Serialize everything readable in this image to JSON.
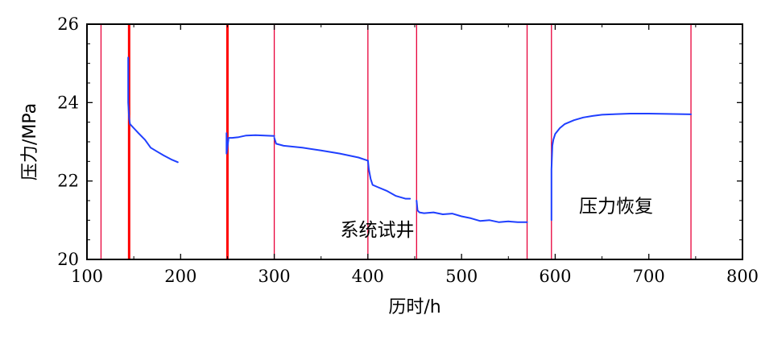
{
  "chart_data": {
    "type": "line",
    "title": "",
    "xlabel": "历时/h",
    "ylabel": "压力/MPa",
    "xlim": [
      100,
      800
    ],
    "ylim": [
      20,
      26
    ],
    "x_ticks": [
      100,
      200,
      300,
      400,
      500,
      600,
      700,
      800
    ],
    "y_ticks": [
      20,
      22,
      24,
      26
    ],
    "grid": false,
    "legend": "none",
    "colors": {
      "series": "#1f3fff",
      "markers": "#e8003a",
      "thick_markers": "#ff0000",
      "axis": "#000000"
    },
    "vertical_markers": [
      {
        "x": 115,
        "emphasis": "thin"
      },
      {
        "x": 145,
        "emphasis": "thick"
      },
      {
        "x": 250,
        "emphasis": "thick"
      },
      {
        "x": 300,
        "emphasis": "thin"
      },
      {
        "x": 400,
        "emphasis": "thin"
      },
      {
        "x": 452,
        "emphasis": "thin"
      },
      {
        "x": 570,
        "emphasis": "thin"
      },
      {
        "x": 596,
        "emphasis": "thin"
      },
      {
        "x": 745,
        "emphasis": "thin"
      }
    ],
    "annotations": [
      {
        "text": "系统试井",
        "x": 410,
        "y": 20.6
      },
      {
        "text": "压力恢复",
        "x": 665,
        "y": 21.2
      }
    ],
    "series": [
      {
        "segments": [
          {
            "x": [
              144,
              144,
              145,
              146,
              150,
              155,
              162,
              168,
              175,
              182,
              190,
              197
            ],
            "y": [
              25.15,
              24.0,
              23.6,
              23.45,
              23.35,
              23.22,
              23.05,
              22.85,
              22.75,
              22.65,
              22.55,
              22.48
            ]
          },
          {
            "x": [
              249,
              249,
              251,
              251,
              255,
              262,
              270,
              280,
              290,
              300
            ],
            "y": [
              23.22,
              22.7,
              23.05,
              23.1,
              23.1,
              23.12,
              23.16,
              23.17,
              23.16,
              23.15
            ]
          },
          {
            "x": [
              300,
              302,
              310,
              330,
              350,
              370,
              390,
              400
            ],
            "y": [
              23.1,
              22.95,
              22.9,
              22.85,
              22.78,
              22.7,
              22.6,
              22.52
            ]
          },
          {
            "x": [
              400,
              401,
              403,
              405,
              410,
              420,
              430,
              440,
              445
            ],
            "y": [
              22.52,
              22.3,
              22.05,
              21.9,
              21.85,
              21.75,
              21.62,
              21.55,
              21.55
            ]
          },
          {
            "x": [
              452,
              453,
              455,
              460,
              470,
              480,
              490,
              500,
              510,
              520,
              530,
              540,
              550,
              560,
              570
            ],
            "y": [
              21.5,
              21.25,
              21.2,
              21.18,
              21.2,
              21.15,
              21.17,
              21.1,
              21.05,
              20.98,
              21.0,
              20.95,
              20.97,
              20.95,
              20.95
            ]
          },
          {
            "x": [
              596,
              596,
              597,
              598,
              600,
              605,
              610,
              620,
              630,
              640,
              650,
              660,
              680,
              700,
              720,
              745
            ],
            "y": [
              21.0,
              22.3,
              22.9,
              23.05,
              23.2,
              23.35,
              23.45,
              23.55,
              23.62,
              23.66,
              23.69,
              23.7,
              23.72,
              23.72,
              23.71,
              23.7
            ]
          }
        ]
      }
    ]
  }
}
